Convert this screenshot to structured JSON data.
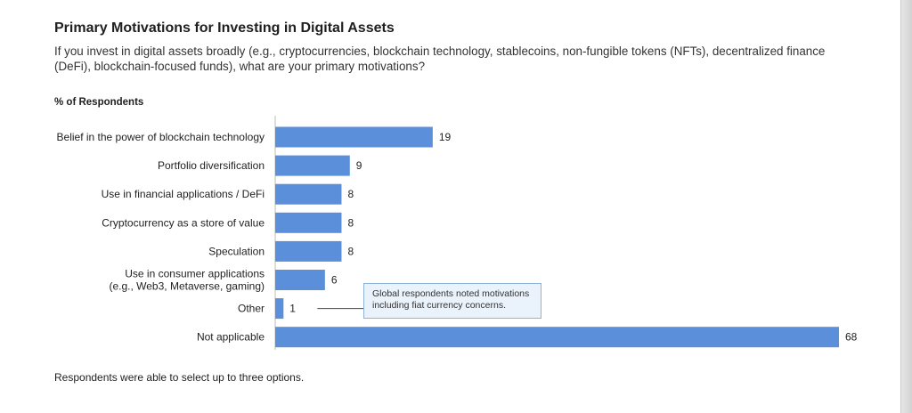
{
  "chart_data": {
    "type": "bar",
    "orientation": "horizontal",
    "title": "Primary Motivations for Investing in Digital Assets",
    "subtitle": "If you invest in digital assets broadly (e.g., cryptocurrencies, blockchain technology, stablecoins, non-fungible tokens (NFTs), decentralized finance (DeFi), blockchain-focused funds), what are your primary motivations?",
    "ylabel": "% of Respondents",
    "categories": [
      [
        "Belief in the power of blockchain technology"
      ],
      [
        "Portfolio diversification"
      ],
      [
        "Use in financial applications / DeFi"
      ],
      [
        "Cryptocurrency as a store of value"
      ],
      [
        "Speculation"
      ],
      [
        "Use in consumer applications",
        "(e.g., Web3, Metaverse, gaming)"
      ],
      [
        "Other"
      ],
      [
        "Not applicable"
      ]
    ],
    "values": [
      19,
      9,
      8,
      8,
      8,
      6,
      1,
      68
    ],
    "xlim": [
      0,
      68
    ],
    "bar_color": "#5b8fd9",
    "annotation": {
      "category_index": 6,
      "text": "Global respondents noted motivations including fiat currency concerns."
    },
    "footnote": "Respondents were able to select up to three options."
  }
}
